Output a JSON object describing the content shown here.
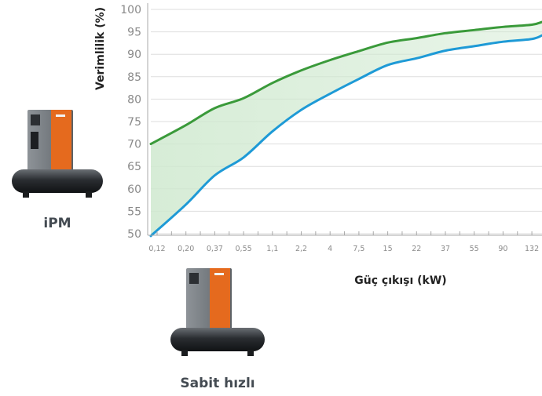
{
  "chart_data": {
    "type": "area",
    "ylabel": "Verimlilik (%)",
    "xlabel": "Güç çıkışı (kW)",
    "ylim": [
      50,
      100
    ],
    "yticks": [
      50,
      55,
      60,
      65,
      70,
      75,
      80,
      85,
      90,
      95,
      100
    ],
    "x_scale": "log",
    "xticks": [
      "0,12",
      "0,20",
      "0,37",
      "0,55",
      "1,1",
      "2,2",
      "4",
      "7,5",
      "15",
      "22",
      "37",
      "55",
      "90",
      "132"
    ],
    "x": [
      0.12,
      0.2,
      0.37,
      0.55,
      1.1,
      2.2,
      4,
      7.5,
      15,
      22,
      37,
      55,
      90,
      132,
      200
    ],
    "grid": true,
    "band_fill_between_series": true,
    "series": [
      {
        "name": "iPM",
        "color": "#3a9a3a",
        "values": [
          70,
          74.2,
          78,
          80.2,
          83.6,
          86.4,
          88.7,
          90.7,
          92.6,
          93.6,
          94.7,
          95.4,
          96.1,
          96.6,
          97.2
        ]
      },
      {
        "name": "Sabit hızlı",
        "color": "#1e9ad6",
        "values": [
          49.5,
          56.5,
          63,
          67,
          72.8,
          77.6,
          81.2,
          84.5,
          87.6,
          89.1,
          90.8,
          91.8,
          92.8,
          93.4,
          94.2
        ]
      }
    ]
  },
  "products": [
    {
      "label": "iPM",
      "icon": "compressor-icon",
      "brand_color": "#e56a1e"
    },
    {
      "label": "Sabit hızlı",
      "icon": "compressor-icon",
      "brand_color": "#e56a1e"
    }
  ],
  "colors": {
    "band_fill": "#cfe9cf",
    "grid": "#dedede",
    "axis": "#a8a8a8"
  }
}
